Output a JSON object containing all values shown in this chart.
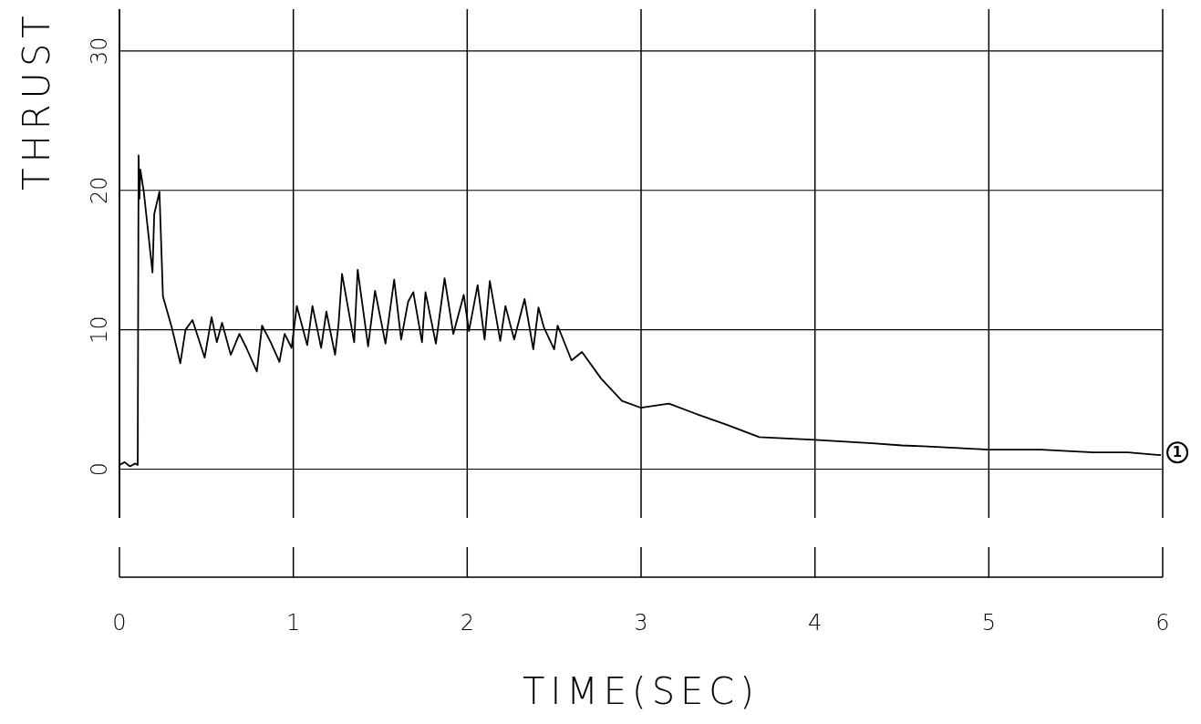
{
  "chart_data": {
    "type": "line",
    "xlabel": "TIME(SEC)",
    "ylabel": "THRUST",
    "x": [
      0,
      0.03,
      0.06,
      0.09,
      0.105,
      0.11,
      0.115,
      0.12,
      0.14,
      0.19,
      0.2,
      0.23,
      0.25,
      0.3,
      0.35,
      0.38,
      0.42,
      0.49,
      0.53,
      0.56,
      0.59,
      0.64,
      0.69,
      0.73,
      0.79,
      0.82,
      0.87,
      0.92,
      0.95,
      0.99,
      1.02,
      1.08,
      1.11,
      1.16,
      1.19,
      1.24,
      1.26,
      1.28,
      1.35,
      1.37,
      1.43,
      1.47,
      1.53,
      1.58,
      1.62,
      1.66,
      1.69,
      1.74,
      1.76,
      1.82,
      1.87,
      1.92,
      1.98,
      2.01,
      2.06,
      2.1,
      2.13,
      2.19,
      2.22,
      2.27,
      2.33,
      2.38,
      2.41,
      2.44,
      2.5,
      2.52,
      2.6,
      2.66,
      2.77,
      2.89,
      3.0,
      3.16,
      3.33,
      3.49,
      3.68,
      4.0,
      4.33,
      4.5,
      4.7,
      5.0,
      5.3,
      5.6,
      5.8,
      5.99
    ],
    "values": [
      0.3,
      0.5,
      0.2,
      0.4,
      0.3,
      22.5,
      19.4,
      21.5,
      19.9,
      14.1,
      18.3,
      19.9,
      12.4,
      10.2,
      7.6,
      10,
      10.7,
      8,
      10.9,
      9.1,
      10.5,
      8.2,
      9.7,
      8.7,
      7,
      10.3,
      9.1,
      7.7,
      9.7,
      8.7,
      11.7,
      8.9,
      11.7,
      8.7,
      11.3,
      8.2,
      10.4,
      14,
      9.1,
      14.3,
      8.8,
      12.8,
      9,
      13.6,
      9.3,
      12,
      12.7,
      9.1,
      12.7,
      9,
      13.7,
      9.7,
      12.5,
      9.9,
      13.2,
      9.3,
      13.5,
      9.2,
      11.7,
      9.3,
      12.2,
      8.6,
      11.6,
      10.2,
      8.6,
      10.3,
      7.8,
      8.4,
      6.5,
      4.9,
      4.4,
      4.7,
      3.9,
      3.2,
      2.3,
      2.1,
      1.85,
      1.7,
      1.6,
      1.4,
      1.4,
      1.2,
      1.2,
      1
    ],
    "color": "#000000",
    "xlim": [
      0,
      6
    ],
    "xticks": [
      0,
      1,
      2,
      3,
      4,
      5,
      6
    ],
    "ylim": [
      -3.5,
      33
    ],
    "yticks": [
      0,
      10,
      20,
      30
    ],
    "grid": true,
    "annotations": [
      "1"
    ]
  }
}
